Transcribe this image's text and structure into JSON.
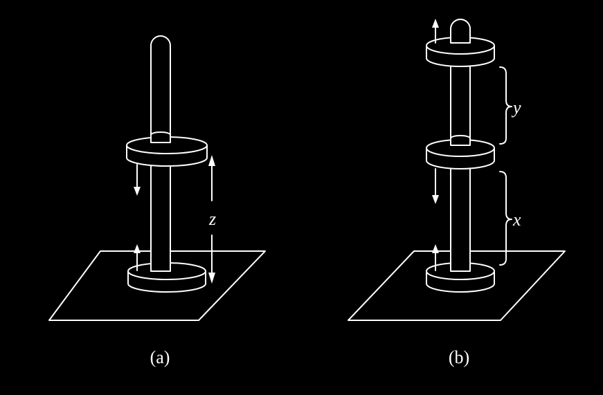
{
  "panel_a": {
    "caption": "(a)",
    "distance_label": "z"
  },
  "panel_b": {
    "caption": "(b)",
    "upper_gap_label": "y",
    "lower_gap_label": "x"
  },
  "colors": {
    "background": "#000000",
    "line": "#ffffff"
  }
}
